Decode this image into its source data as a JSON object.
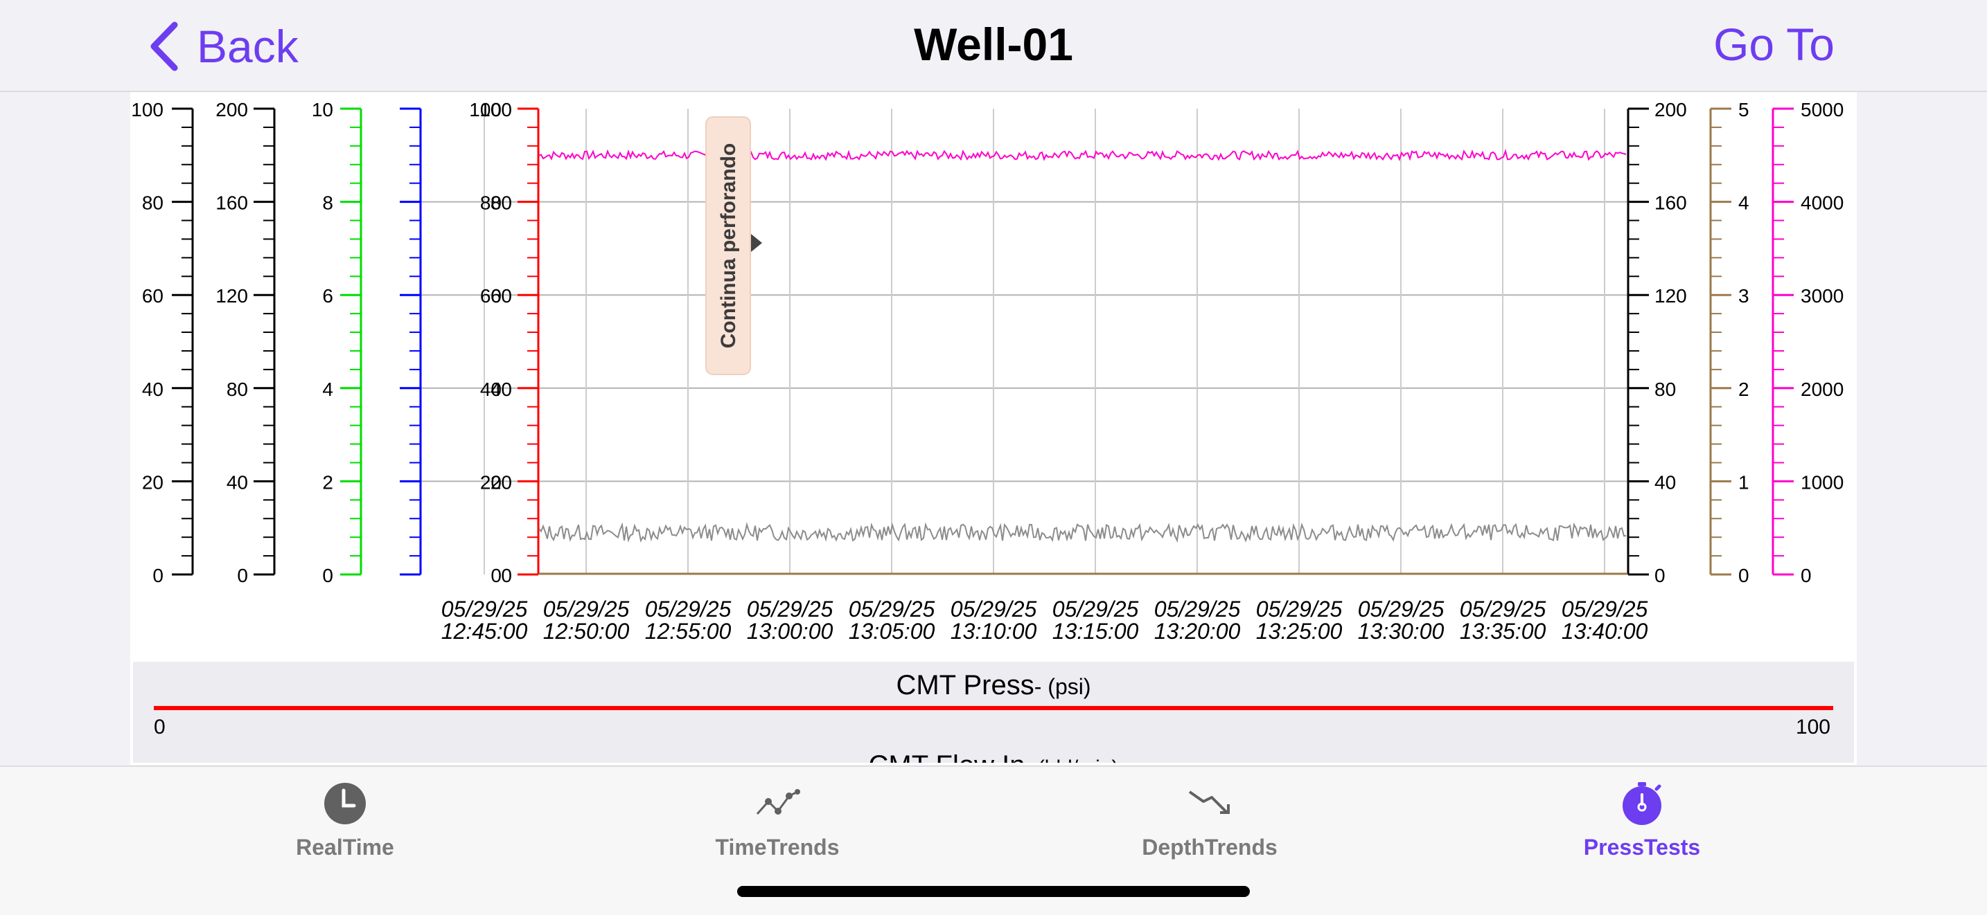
{
  "nav": {
    "back_label": "Back",
    "title": "Well-01",
    "goto_label": "Go To"
  },
  "chart_data": {
    "type": "line",
    "left_axes": [
      {
        "color": "#000000",
        "ticks": [
          "0",
          "20",
          "40",
          "60",
          "80",
          "100"
        ]
      },
      {
        "color": "#000000",
        "ticks": [
          "0",
          "40",
          "80",
          "120",
          "160",
          "200"
        ]
      },
      {
        "color": "#00dd00",
        "ticks": [
          "0",
          "2",
          "4",
          "6",
          "8",
          "10"
        ]
      },
      {
        "color": "#0000ff",
        "ticks": []
      },
      {
        "color": "#ff0000",
        "ticks": [
          "0",
          "20",
          "40",
          "60",
          "80",
          "100"
        ]
      }
    ],
    "right_axes": [
      {
        "color": "#000000",
        "ticks": [
          "0",
          "40",
          "80",
          "120",
          "160",
          "200"
        ]
      },
      {
        "color": "#9b7a4a",
        "ticks": [
          "0",
          "1",
          "2",
          "3",
          "4",
          "5"
        ]
      },
      {
        "color": "#ff00cc",
        "ticks": [
          "0",
          "1000",
          "2000",
          "3000",
          "4000",
          "5000"
        ]
      }
    ],
    "x_dates": [
      "05/29/25",
      "05/29/25",
      "05/29/25",
      "05/29/25",
      "05/29/25",
      "05/29/25",
      "05/29/25",
      "05/29/25",
      "05/29/25",
      "05/29/25",
      "05/29/25",
      "05/29/25"
    ],
    "x_times": [
      "12:45:00",
      "12:50:00",
      "12:55:00",
      "13:00:00",
      "13:05:00",
      "13:10:00",
      "13:15:00",
      "13:20:00",
      "13:25:00",
      "13:30:00",
      "13:35:00",
      "13:40:00"
    ],
    "series": [
      {
        "color": "#ff00cc",
        "axis": "right-5000",
        "approx_level": 4500
      },
      {
        "color": "#8c8c8c",
        "axis": "left-100",
        "approx_level": 9
      },
      {
        "color": "#9b7a4a",
        "axis": "right-5",
        "approx_level": 0
      }
    ],
    "annotation": "Continua perforando",
    "grid": true
  },
  "legend": {
    "item1_name": "CMT Press",
    "item1_unit": "- (psi)",
    "item1_min": "0",
    "item1_max": "100",
    "item1_color": "#ff0000",
    "item2_name": "CMT Flow In",
    "item2_unit": "- (bbl/min)"
  },
  "tabs": [
    {
      "label": "RealTime",
      "icon": "clock-icon"
    },
    {
      "label": "TimeTrends",
      "icon": "line-chart-icon"
    },
    {
      "label": "DepthTrends",
      "icon": "trend-down-icon"
    },
    {
      "label": "PressTests",
      "icon": "stopwatch-icon",
      "active": true
    }
  ],
  "colors": {
    "accent": "#6d3df0",
    "tab_inactive": "#7a7a7a"
  }
}
